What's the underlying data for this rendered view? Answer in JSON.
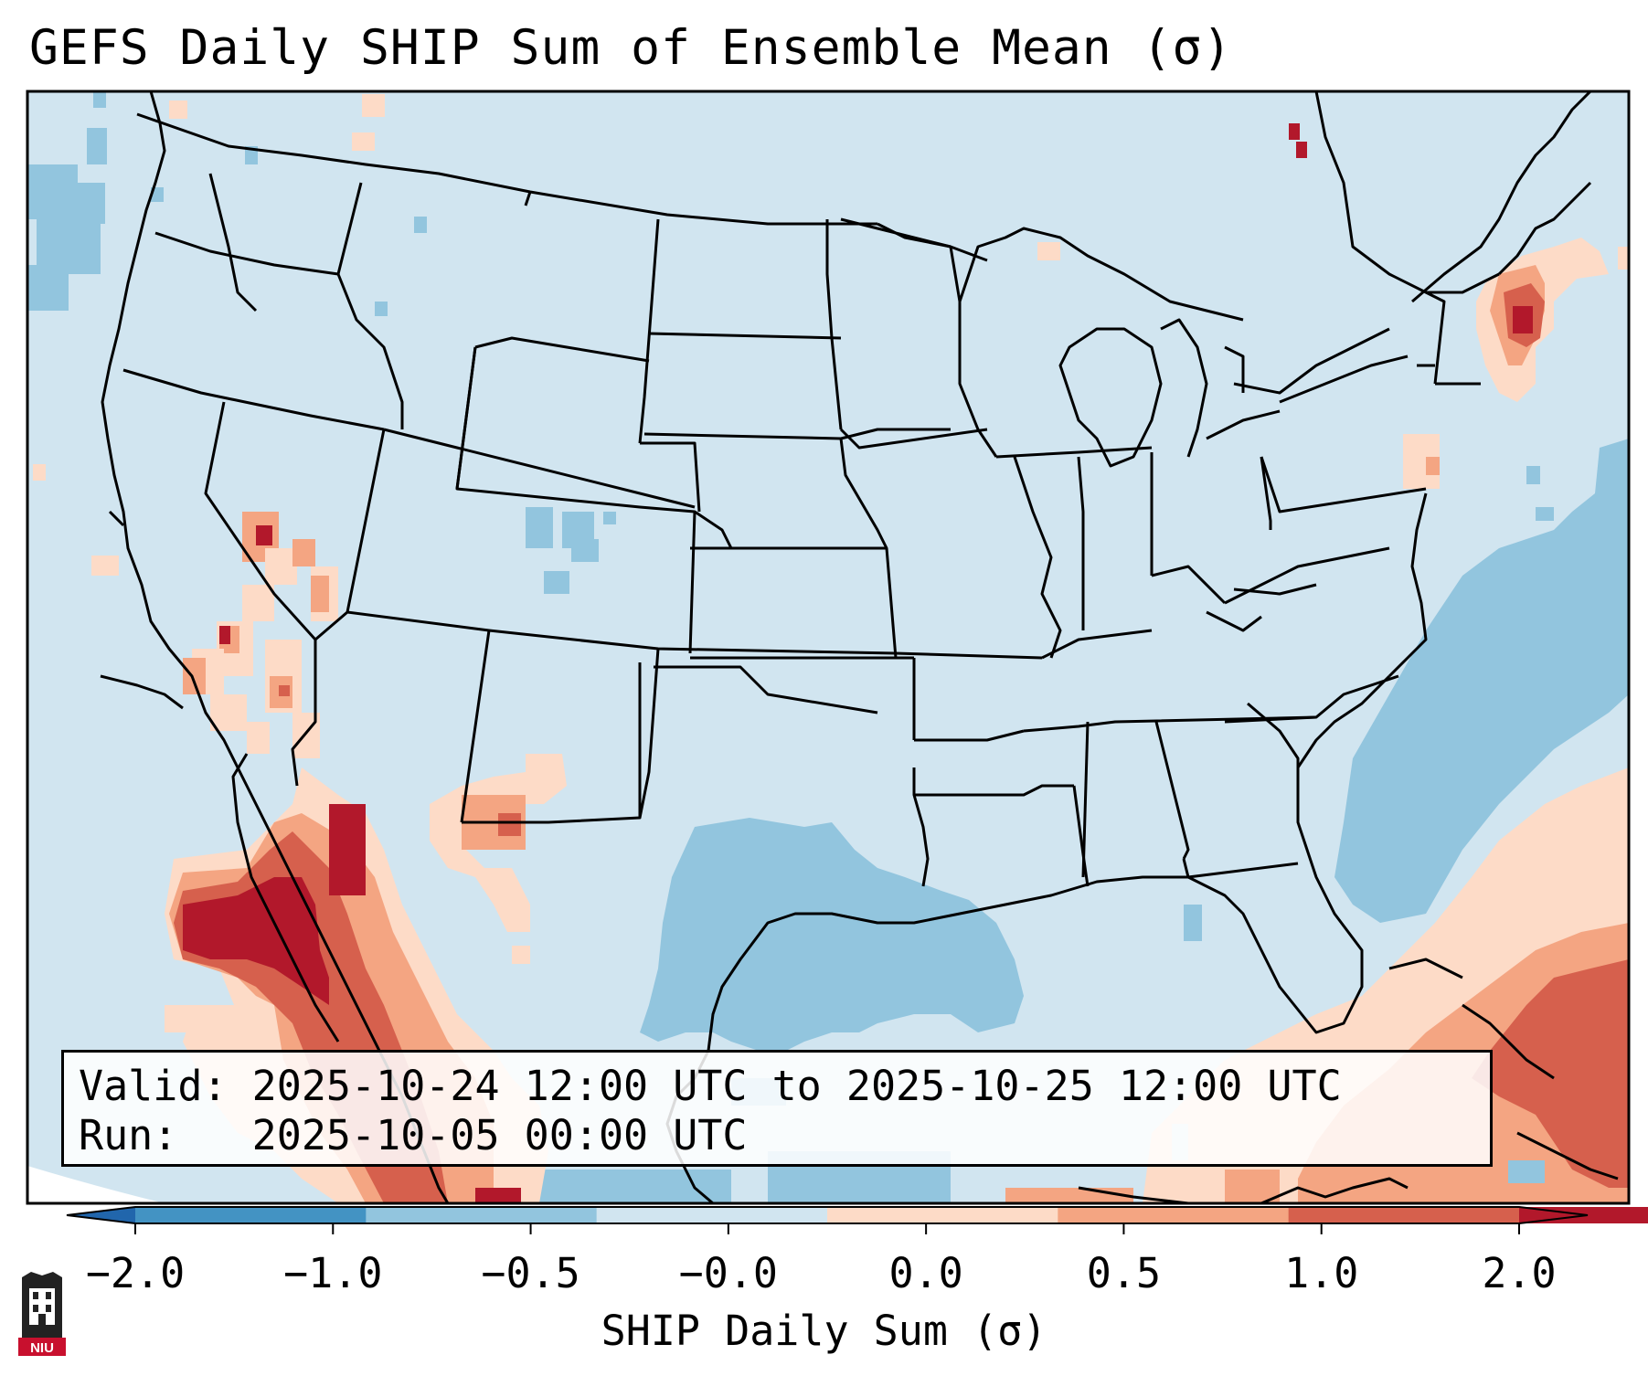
{
  "title": "GEFS Daily SHIP Sum of Ensemble Mean (σ)",
  "info": {
    "valid_line": "Valid: 2025-10-24 12:00 UTC to 2025-10-25 12:00 UTC",
    "run_line": "Run:   2025-10-05 00:00 UTC"
  },
  "colorbar": {
    "label": "SHIP Daily Sum (σ)",
    "ticks": [
      "−2.0",
      "−1.0",
      "−0.5",
      "−0.0",
      "0.0",
      "0.5",
      "1.0",
      "2.0"
    ],
    "colors": [
      "#4393c3",
      "#92c5de",
      "#d1e5f0",
      "#f7f7f7",
      "#fddbc7",
      "#f4a582",
      "#d6604d",
      "#b2182b"
    ]
  },
  "logo": {
    "text": "NIU"
  },
  "colors": {
    "ocean_background": "#d1e5f0",
    "neutral": "#f7f7f7",
    "blue_strong": "#92c5de",
    "red_light": "#fddbc7",
    "red_mid": "#f4a582",
    "red_strong": "#d6604d",
    "red_max": "#b2182b"
  }
}
